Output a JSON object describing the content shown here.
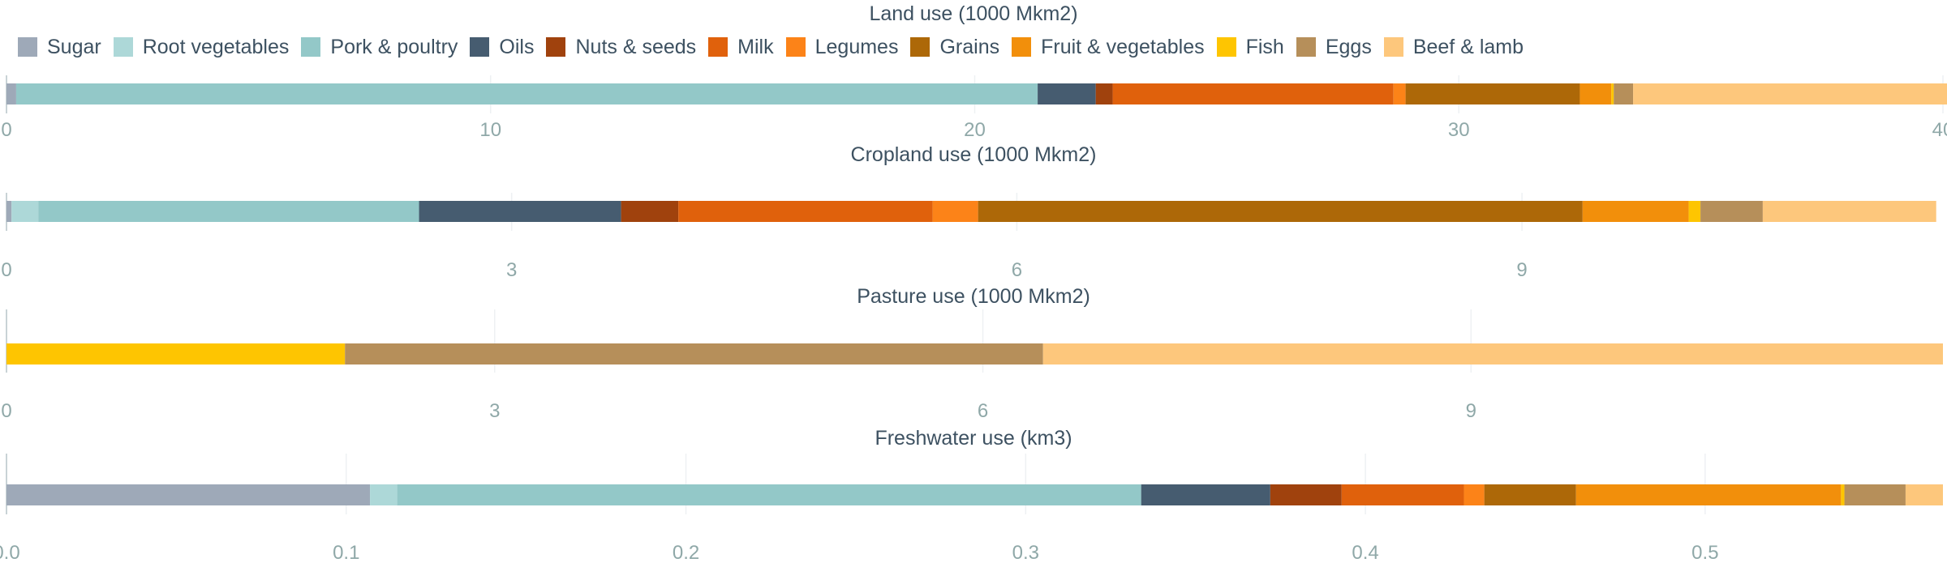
{
  "legend": [
    {
      "name": "Sugar",
      "color": "#9ea9b8"
    },
    {
      "name": "Root vegetables",
      "color": "#add8d8"
    },
    {
      "name": "Pork & poultry",
      "color": "#93c8c8"
    },
    {
      "name": "Oils",
      "color": "#465c70"
    },
    {
      "name": "Nuts & seeds",
      "color": "#a0420d"
    },
    {
      "name": "Milk",
      "color": "#e0610c"
    },
    {
      "name": "Legumes",
      "color": "#fc8318"
    },
    {
      "name": "Grains",
      "color": "#ad6808"
    },
    {
      "name": "Fruit & vegetables",
      "color": "#f28f0b"
    },
    {
      "name": "Fish",
      "color": "#fec501"
    },
    {
      "name": "Eggs",
      "color": "#b68f5a"
    },
    {
      "name": "Beef & lamb",
      "color": "#fdc77c"
    }
  ],
  "chart_data": [
    {
      "type": "bar",
      "orientation": "horizontal",
      "stacked": true,
      "title": "Land use (1000 Mkm2)",
      "xlim": [
        0,
        40
      ],
      "ticks": [
        0,
        10,
        20,
        30,
        40
      ],
      "tick_labels": [
        "0",
        "10",
        "20",
        "30",
        "40"
      ],
      "grid": true,
      "series": [
        {
          "name": "Sugar",
          "value": 0.2
        },
        {
          "name": "Root vegetables",
          "value": 0
        },
        {
          "name": "Pork & poultry",
          "value": 21.1
        },
        {
          "name": "Oils",
          "value": 1.2
        },
        {
          "name": "Nuts & seeds",
          "value": 0.35
        },
        {
          "name": "Milk",
          "value": 5.8
        },
        {
          "name": "Legumes",
          "value": 0.25
        },
        {
          "name": "Grains",
          "value": 3.6
        },
        {
          "name": "Fruit & vegetables",
          "value": 0.65
        },
        {
          "name": "Fish",
          "value": 0.05
        },
        {
          "name": "Eggs",
          "value": 0.4
        },
        {
          "name": "Beef & lamb",
          "value": 6.5
        }
      ]
    },
    {
      "type": "bar",
      "orientation": "horizontal",
      "stacked": true,
      "title": "Cropland use (1000 Mkm2)",
      "xlim": [
        0,
        11.5
      ],
      "ticks": [
        0,
        3,
        6,
        9
      ],
      "tick_labels": [
        "0",
        "3",
        "6",
        "9"
      ],
      "grid": true,
      "series": [
        {
          "name": "Sugar",
          "value": 0.03
        },
        {
          "name": "Root vegetables",
          "value": 0.16
        },
        {
          "name": "Pork & poultry",
          "value": 2.26
        },
        {
          "name": "Oils",
          "value": 1.2
        },
        {
          "name": "Nuts & seeds",
          "value": 0.34
        },
        {
          "name": "Milk",
          "value": 1.51
        },
        {
          "name": "Legumes",
          "value": 0.27
        },
        {
          "name": "Grains",
          "value": 3.59
        },
        {
          "name": "Fruit & vegetables",
          "value": 0.63
        },
        {
          "name": "Fish",
          "value": 0.07
        },
        {
          "name": "Eggs",
          "value": 0.37
        },
        {
          "name": "Beef & lamb",
          "value": 1.03
        }
      ]
    },
    {
      "type": "bar",
      "orientation": "horizontal",
      "stacked": true,
      "title": "Pasture use (1000 Mkm2)",
      "xlim": [
        0,
        11.9
      ],
      "ticks": [
        0,
        3,
        6,
        9
      ],
      "tick_labels": [
        "0",
        "3",
        "6",
        "9"
      ],
      "grid": true,
      "series": [
        {
          "name": "Fish",
          "value": 2.08
        },
        {
          "name": "Eggs",
          "value": 4.29
        },
        {
          "name": "Beef & lamb",
          "value": 5.53
        }
      ]
    },
    {
      "type": "bar",
      "orientation": "horizontal",
      "stacked": true,
      "title": "Freshwater use (km3)",
      "xlim": [
        0,
        0.57
      ],
      "ticks": [
        0.0,
        0.1,
        0.2,
        0.3,
        0.4,
        0.5
      ],
      "tick_labels": [
        "0.0",
        "0.1",
        "0.2",
        "0.3",
        "0.4",
        "0.5"
      ],
      "grid": true,
      "series": [
        {
          "name": "Sugar",
          "value": 0.107
        },
        {
          "name": "Root vegetables",
          "value": 0.008
        },
        {
          "name": "Pork & poultry",
          "value": 0.219
        },
        {
          "name": "Oils",
          "value": 0.038
        },
        {
          "name": "Nuts & seeds",
          "value": 0.021
        },
        {
          "name": "Milk",
          "value": 0.036
        },
        {
          "name": "Legumes",
          "value": 0.006
        },
        {
          "name": "Grains",
          "value": 0.027
        },
        {
          "name": "Fruit & vegetables",
          "value": 0.078
        },
        {
          "name": "Fish",
          "value": 0.001
        },
        {
          "name": "Eggs",
          "value": 0.018
        },
        {
          "name": "Beef & lamb",
          "value": 0.011
        }
      ]
    }
  ]
}
